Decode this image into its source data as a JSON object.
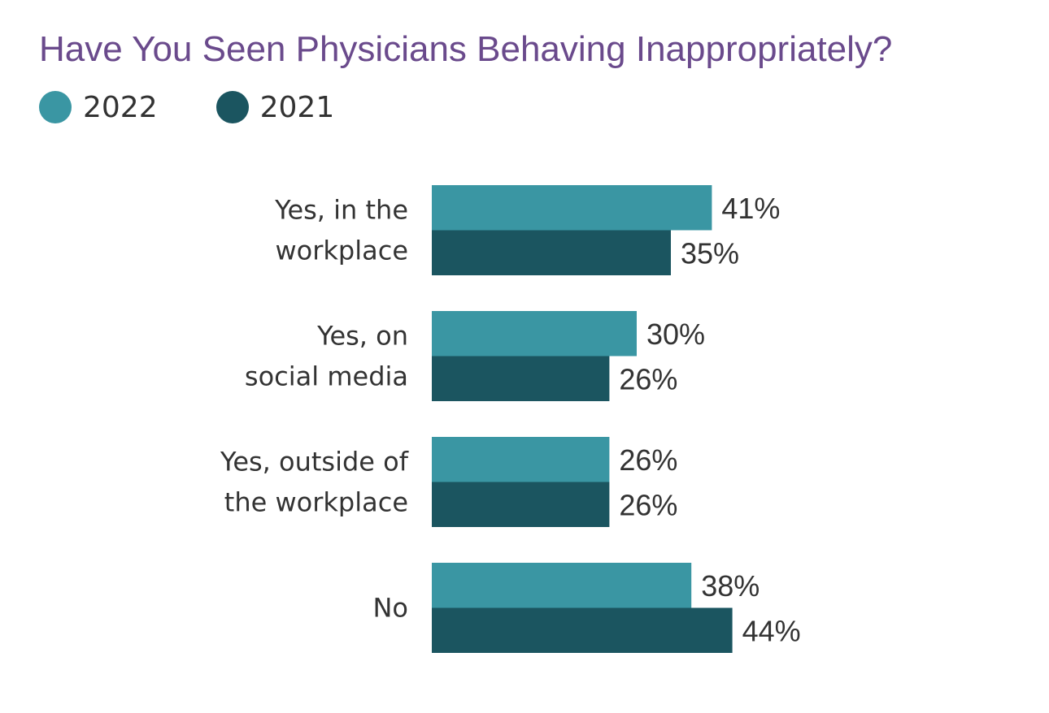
{
  "chart_data": {
    "type": "bar",
    "orientation": "horizontal",
    "title": "Have You Seen Physicians Behaving Inappropriately?",
    "categories": [
      [
        "Yes, in the",
        "workplace"
      ],
      [
        "Yes, on",
        "social media"
      ],
      [
        "Yes, outside of",
        "the workplace"
      ],
      [
        "No"
      ]
    ],
    "series": [
      {
        "name": "2022",
        "color": "#3a96a3",
        "values": [
          41,
          30,
          26,
          38
        ],
        "labels": [
          "41%",
          "30%",
          "26%",
          "38%"
        ]
      },
      {
        "name": "2021",
        "color": "#1b5560",
        "values": [
          35,
          26,
          26,
          44
        ],
        "labels": [
          "35%",
          "26%",
          "26%",
          "44%"
        ]
      }
    ],
    "value_unit": "%",
    "xlim": [
      0,
      100
    ],
    "grid": false,
    "legend_position": "top-left"
  }
}
